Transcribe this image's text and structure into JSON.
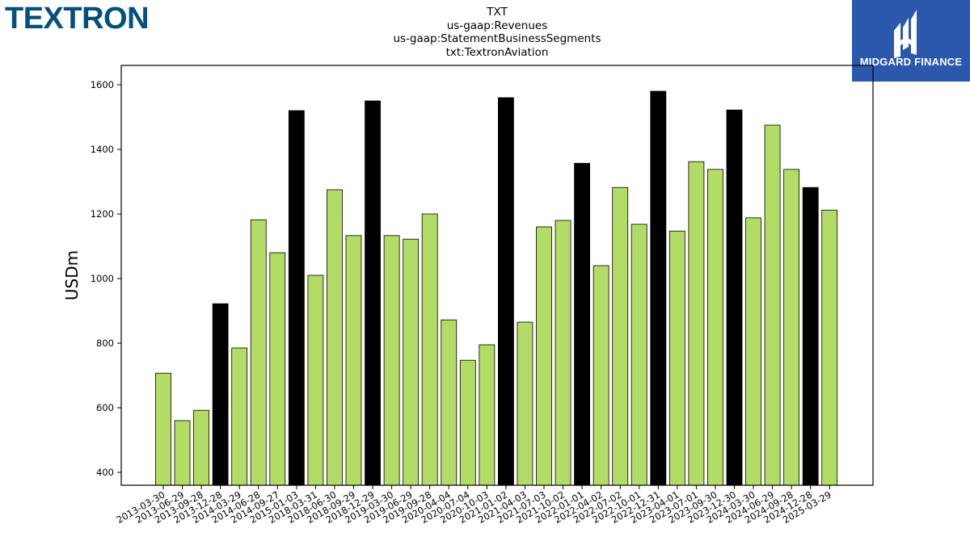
{
  "logos": {
    "left_text": "TEXTRON",
    "left_color": "#03507d",
    "right_text": "MIDGARD FINANCE",
    "right_bg": "#2b58ad"
  },
  "colors": {
    "bar_default": "#b3dc67",
    "bar_highlight": "#000000",
    "bar_edge": "#000000"
  },
  "chart_data": {
    "type": "bar",
    "title": [
      "TXT",
      "us-gaap:Revenues",
      "us-gaap:StatementBusinessSegments",
      "txt:TextronAviation"
    ],
    "xlabel": "",
    "ylabel": "USDm",
    "ylim": [
      360,
      1660
    ],
    "yticks": [
      400,
      600,
      800,
      1000,
      1200,
      1400,
      1600
    ],
    "grid": false,
    "legend": "none",
    "categories": [
      "2013-03-30",
      "2013-06-29",
      "2013-09-28",
      "2013-12-28",
      "2014-03-29",
      "2014-06-28",
      "2014-09-27",
      "2015-01-03",
      "2018-03-31",
      "2018-06-30",
      "2018-09-29",
      "2018-12-29",
      "2019-03-30",
      "2019-06-29",
      "2019-09-28",
      "2020-04-04",
      "2020-07-04",
      "2020-10-03",
      "2021-01-02",
      "2021-04-03",
      "2021-07-03",
      "2021-10-02",
      "2022-01-01",
      "2022-04-02",
      "2022-07-02",
      "2022-10-01",
      "2022-12-31",
      "2023-04-01",
      "2023-07-01",
      "2023-09-30",
      "2023-12-30",
      "2024-03-30",
      "2024-06-29",
      "2024-09-28",
      "2024-12-28",
      "2025-03-29"
    ],
    "values": [
      707,
      560,
      592,
      922,
      785,
      1182,
      1080,
      1520,
      1010,
      1275,
      1133,
      1550,
      1133,
      1122,
      1200,
      872,
      747,
      795,
      1560,
      865,
      1160,
      1180,
      1357,
      1040,
      1282,
      1168,
      1580,
      1147,
      1362,
      1338,
      1522,
      1188,
      1475,
      1338,
      1282,
      1212
    ],
    "highlight": [
      false,
      false,
      false,
      true,
      false,
      false,
      false,
      true,
      false,
      false,
      false,
      true,
      false,
      false,
      false,
      false,
      false,
      false,
      true,
      false,
      false,
      false,
      true,
      false,
      false,
      false,
      true,
      false,
      false,
      false,
      true,
      false,
      false,
      false,
      true,
      false
    ]
  }
}
